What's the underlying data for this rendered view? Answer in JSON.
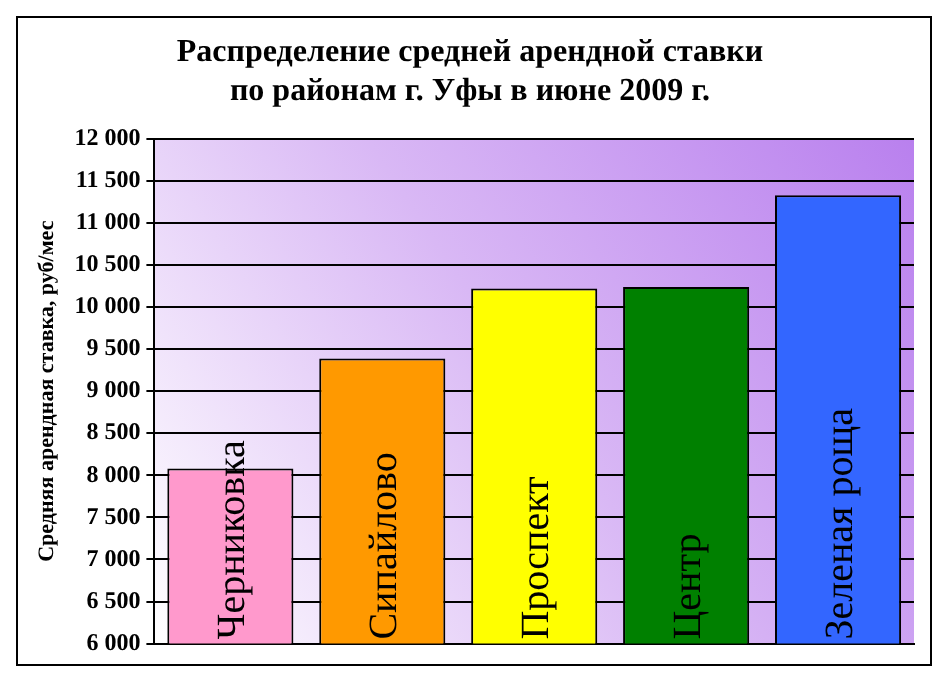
{
  "chart_data": {
    "type": "bar",
    "title": "Распределение средней арендной ставки\nпо районам г. Уфы в июне 2009 г.",
    "ylabel": "Средняя арендная ставка, руб/мес",
    "categories": [
      "Черниковка",
      "Сипайлово",
      "Проспект",
      "Центр",
      "Зеленая роща"
    ],
    "values": [
      8080,
      9390,
      10220,
      10240,
      11330
    ],
    "colors": [
      "#ff99cc",
      "#ff9900",
      "#ffff00",
      "#008000",
      "#3366ff"
    ],
    "ylim": [
      6000,
      12000
    ],
    "yticks": [
      {
        "value": 6000,
        "label": "6 000"
      },
      {
        "value": 6500,
        "label": "6 500"
      },
      {
        "value": 7000,
        "label": "7 000"
      },
      {
        "value": 7500,
        "label": "7 500"
      },
      {
        "value": 8000,
        "label": "8 000"
      },
      {
        "value": 8500,
        "label": "8 500"
      },
      {
        "value": 9000,
        "label": "9 000"
      },
      {
        "value": 9500,
        "label": "9 500"
      },
      {
        "value": 10000,
        "label": "10 000"
      },
      {
        "value": 10500,
        "label": "10 500"
      },
      {
        "value": 11000,
        "label": "11 000"
      },
      {
        "value": 11500,
        "label": "11 500"
      },
      {
        "value": 12000,
        "label": "12 000"
      }
    ],
    "grid": "y",
    "legend": false
  }
}
